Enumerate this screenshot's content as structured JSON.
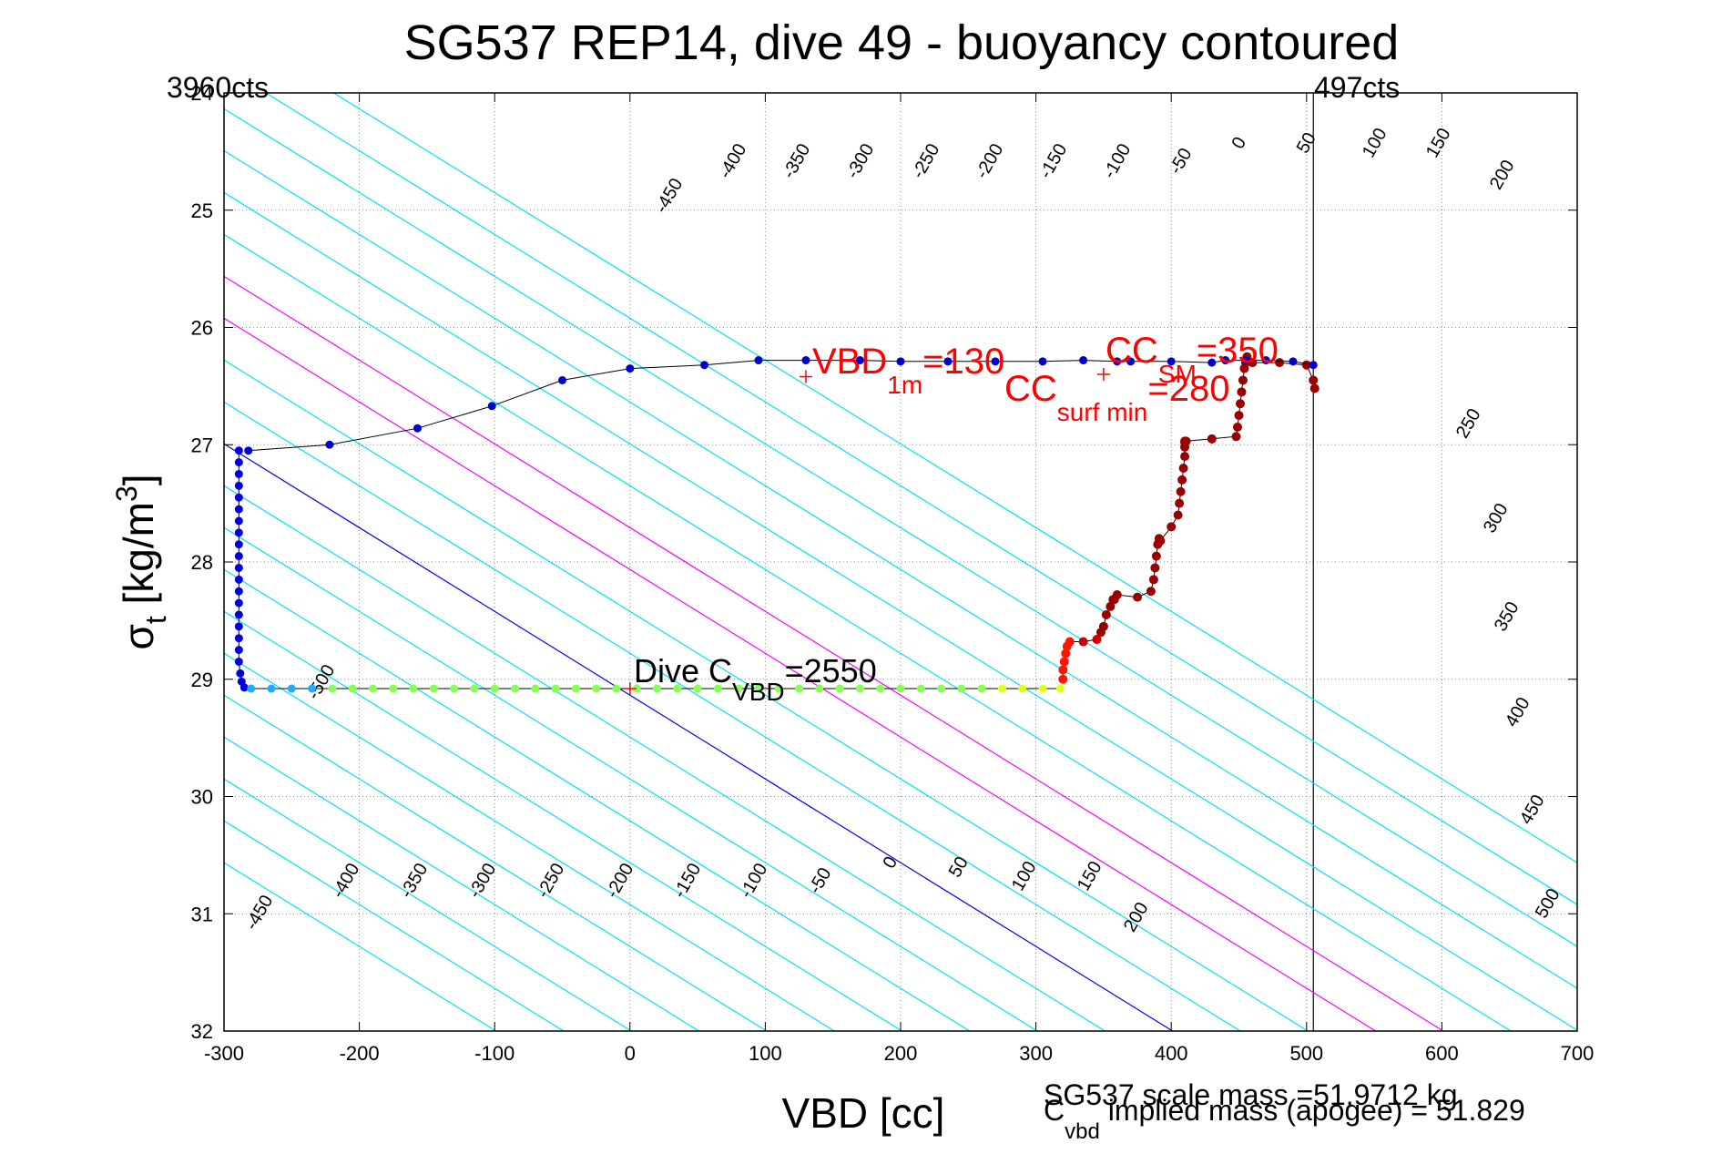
{
  "chart_data": {
    "type": "scatter",
    "title": "SG537 REP14, dive 49 - buoyancy contoured",
    "xlabel": "VBD [cc]",
    "ylabel": {
      "main": "σ",
      "sub": "t",
      "unit": " [kg/m",
      "sup": "3",
      "close": "]"
    },
    "xlim": [
      -300,
      700
    ],
    "ylim": [
      24,
      32
    ],
    "y_reversed": true,
    "grid": true,
    "x_ticks": [
      -300,
      -200,
      -100,
      0,
      100,
      200,
      300,
      400,
      500,
      600,
      700
    ],
    "y_ticks": [
      25,
      26,
      27,
      28,
      29,
      30,
      31,
      32
    ],
    "corner_labels": {
      "left": "3960cts",
      "right": "497cts"
    },
    "contours": {
      "values": [
        -500,
        -450,
        -400,
        -350,
        -300,
        -250,
        -200,
        -150,
        -100,
        -50,
        0,
        50,
        100,
        150,
        200,
        250,
        300,
        350,
        400,
        450,
        500
      ],
      "colors": {
        "negative": "#00e5ee",
        "neutral": "#0000ff",
        "positive": "#ff00ff"
      },
      "top_labels": [
        "-450",
        "-400",
        "-350",
        "-300",
        "-250",
        "-200",
        "-150",
        "-100",
        "-50",
        "0",
        "50",
        "100",
        "150",
        "200"
      ],
      "bottom_labels": [
        "-450",
        "-400",
        "-350",
        "-300",
        "-250",
        "-200",
        "-150",
        "-100",
        "-50",
        "0",
        "50",
        "100",
        "150",
        "200"
      ],
      "right_labels": [
        "250",
        "300",
        "350",
        "400",
        "450",
        "500"
      ],
      "extra_label": "-500"
    },
    "vertical_line_x": 505,
    "series": [
      {
        "x": [
          -289,
          -289,
          -289,
          -289,
          -289,
          -289,
          -289,
          -289,
          -289,
          -289,
          -289,
          -289,
          -289,
          -289,
          -289,
          -289,
          -289,
          -289,
          -289,
          -288,
          -287,
          -285
        ],
        "y": [
          27.05,
          27.15,
          27.25,
          27.35,
          27.45,
          27.55,
          27.65,
          27.75,
          27.85,
          27.95,
          28.05,
          28.15,
          28.25,
          28.35,
          28.45,
          28.55,
          28.65,
          28.75,
          28.85,
          28.95,
          29.02,
          29.07
        ]
      },
      {
        "x": [
          -280,
          -265,
          -250,
          -235,
          -220,
          -205,
          -190,
          -175,
          -160,
          -145,
          -130,
          -115,
          -100,
          -85,
          -70,
          -55,
          -40,
          -25,
          -10,
          5,
          20,
          35,
          50,
          65,
          80,
          95,
          110,
          125,
          140,
          155,
          170,
          185,
          200,
          215,
          230,
          245,
          260,
          275,
          290,
          305,
          318
        ],
        "y": [
          29.08,
          29.08,
          29.08,
          29.08,
          29.08,
          29.08,
          29.08,
          29.08,
          29.08,
          29.08,
          29.08,
          29.08,
          29.08,
          29.08,
          29.08,
          29.08,
          29.08,
          29.08,
          29.08,
          29.08,
          29.08,
          29.08,
          29.08,
          29.08,
          29.08,
          29.08,
          29.08,
          29.08,
          29.08,
          29.08,
          29.08,
          29.08,
          29.08,
          29.08,
          29.08,
          29.08,
          29.08,
          29.08,
          29.08,
          29.08,
          29.08
        ]
      },
      {
        "x": [
          320,
          320,
          321,
          322,
          323,
          325,
          335,
          345,
          348,
          350,
          352,
          355,
          357,
          358,
          360,
          375,
          385,
          387,
          388,
          389,
          390,
          391,
          392,
          400,
          405,
          406,
          407,
          408,
          409,
          410,
          410,
          410,
          410,
          411,
          430,
          448,
          449,
          450,
          451,
          452,
          453,
          454,
          455,
          456,
          460,
          480,
          500,
          505,
          506
        ],
        "y": [
          29.0,
          28.92,
          28.85,
          28.78,
          28.72,
          28.68,
          28.68,
          28.66,
          28.6,
          28.55,
          28.45,
          28.38,
          28.32,
          28.32,
          28.28,
          28.3,
          28.25,
          28.15,
          28.05,
          27.95,
          27.85,
          27.8,
          27.82,
          27.7,
          27.6,
          27.5,
          27.4,
          27.3,
          27.2,
          27.1,
          27.02,
          26.98,
          26.97,
          26.97,
          26.95,
          26.93,
          26.85,
          26.75,
          26.65,
          26.55,
          26.45,
          26.35,
          26.3,
          26.25,
          26.3,
          26.3,
          26.32,
          26.45,
          26.52
        ]
      },
      {
        "x": [
          505,
          490,
          470,
          455,
          440,
          430,
          400,
          370,
          360,
          335,
          305,
          270,
          235,
          200,
          170,
          130,
          95,
          55,
          0,
          -50,
          -102,
          -157,
          -222,
          -282
        ],
        "y": [
          26.32,
          26.29,
          26.28,
          26.28,
          26.28,
          26.3,
          26.29,
          26.29,
          26.29,
          26.28,
          26.29,
          26.29,
          26.29,
          26.29,
          26.28,
          26.28,
          26.28,
          26.32,
          26.35,
          26.45,
          26.67,
          26.86,
          27.0,
          27.05
        ]
      }
    ],
    "annotations": {
      "dive_cvbd": {
        "base": "Dive C",
        "sub": "VBD",
        "value": "=2550"
      },
      "vbd_1m": {
        "base": "VBD",
        "sub": "1m",
        "value": "=130"
      },
      "cc_sm": {
        "base": "CC",
        "sub": "SM",
        "value": "=350"
      },
      "cc_surf_min": {
        "base": "CC",
        "sub": "surf min",
        "value": "=280"
      },
      "scale_mass": "SG537 scale mass =51.9712 kg",
      "implied_mass": {
        "base": "C",
        "sub": "vbd",
        "value": " implied mass (apogee) = 51.829"
      }
    }
  }
}
